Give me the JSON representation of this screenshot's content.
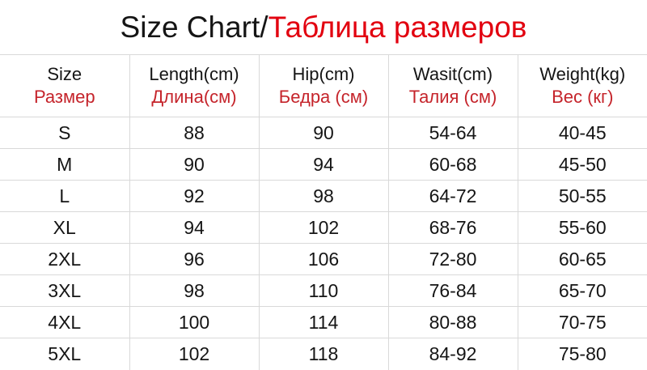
{
  "theme": {
    "background": "#ffffff",
    "grid_color": "#d9d9d9",
    "text_color": "#151515",
    "title_red": "#e2000f",
    "header_red": "#c5242b"
  },
  "title": {
    "en": "Size Chart/",
    "ru": "Таблица размеров"
  },
  "table": {
    "columns": [
      {
        "en": "Size",
        "ru": "Размер"
      },
      {
        "en": "Length(cm)",
        "ru": "Длина(см)"
      },
      {
        "en": "Hip(cm)",
        "ru": "Бедра (см)"
      },
      {
        "en": "Wasit(cm)",
        "ru": "Талия (см)"
      },
      {
        "en": "Weight(kg)",
        "ru": "Вес (кг)"
      }
    ],
    "rows": [
      [
        "S",
        "88",
        "90",
        "54-64",
        "40-45"
      ],
      [
        "M",
        "90",
        "94",
        "60-68",
        "45-50"
      ],
      [
        "L",
        "92",
        "98",
        "64-72",
        "50-55"
      ],
      [
        "XL",
        "94",
        "102",
        "68-76",
        "55-60"
      ],
      [
        "2XL",
        "96",
        "106",
        "72-80",
        "60-65"
      ],
      [
        "3XL",
        "98",
        "110",
        "76-84",
        "65-70"
      ],
      [
        "4XL",
        "100",
        "114",
        "80-88",
        "70-75"
      ],
      [
        "5XL",
        "102",
        "118",
        "84-92",
        "75-80"
      ]
    ]
  },
  "chart_data": {
    "type": "table",
    "title": "Size Chart/Таблица размеров",
    "columns": [
      "Size/Размер",
      "Length(cm)/Длина(см)",
      "Hip(cm)/Бедра (см)",
      "Wasit(cm)/Талия (см)",
      "Weight(kg)/Вес (кг)"
    ],
    "rows": [
      [
        "S",
        88,
        90,
        "54-64",
        "40-45"
      ],
      [
        "M",
        90,
        94,
        "60-68",
        "45-50"
      ],
      [
        "L",
        92,
        98,
        "64-72",
        "50-55"
      ],
      [
        "XL",
        94,
        102,
        "68-76",
        "55-60"
      ],
      [
        "2XL",
        96,
        106,
        "72-80",
        "60-65"
      ],
      [
        "3XL",
        98,
        110,
        "76-84",
        "65-70"
      ],
      [
        "4XL",
        100,
        114,
        "80-88",
        "70-75"
      ],
      [
        "5XL",
        102,
        118,
        "84-92",
        "75-80"
      ]
    ]
  }
}
